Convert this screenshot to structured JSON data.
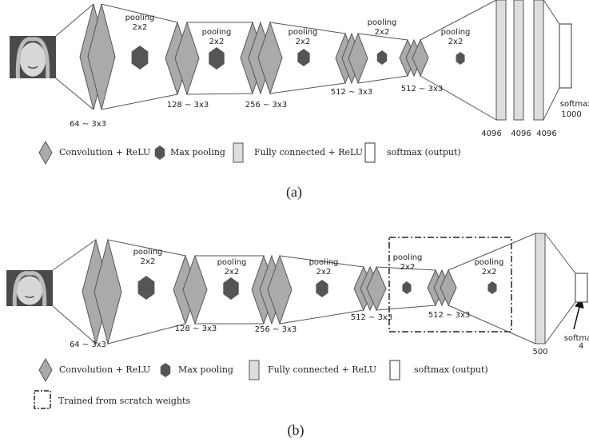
{
  "panels": [
    {
      "pooling": [
        {
          "label": "pooling",
          "size": "2x2"
        },
        {
          "label": "pooling",
          "size": "2x2"
        },
        {
          "label": "pooling",
          "size": "2x2"
        },
        {
          "label": "pooling",
          "size": "2x2"
        },
        {
          "label": "pooling",
          "size": "2x2"
        }
      ],
      "conv": [
        "64 ∼ 3x3",
        "128 ∼ 3x3",
        "256 ∼ 3x3",
        "512 ∼ 3x3",
        "512 ∼ 3x3"
      ],
      "fc": [
        "4096",
        "4096",
        "4096"
      ],
      "softmax": {
        "label": "softmax",
        "size": "1000"
      },
      "legend": [
        "Convolution + ReLU",
        "Max pooling",
        "Fully connected + ReLU",
        "softmax (output)"
      ],
      "caption": "(a)"
    },
    {
      "pooling": [
        {
          "label": "pooling",
          "size": "2x2"
        },
        {
          "label": "pooling",
          "size": "2x2"
        },
        {
          "label": "pooling",
          "size": "2x2"
        },
        {
          "label": "pooling",
          "size": "2x2"
        },
        {
          "label": "pooling",
          "size": "2x2"
        }
      ],
      "conv": [
        "64 ∼ 3x3",
        "128 ∼ 3x3",
        "256 ∼ 3x3",
        "512 ∼ 3x3",
        "512 ∼ 3x3"
      ],
      "fc": [
        "500"
      ],
      "softmax": {
        "label": "softmax",
        "size": "4"
      },
      "legend": [
        "Convolution + ReLU",
        "Max pooling",
        "Fully connected + ReLU",
        "softmax (output)"
      ],
      "trained_legend": "Trained from scratch weights",
      "caption": "(b)"
    }
  ]
}
